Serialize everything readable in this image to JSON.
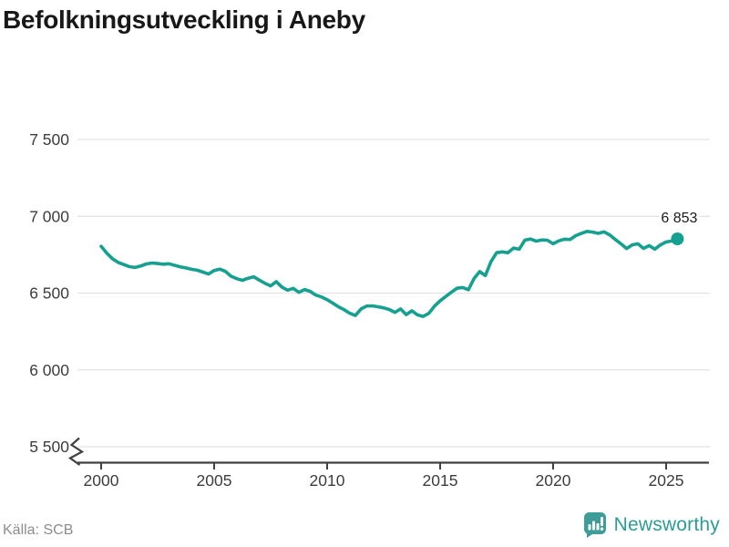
{
  "title": "Befolkningsutveckling i Aneby",
  "source": "Källa: SCB",
  "branding": {
    "wordmark": "Newsworthy",
    "logo_color": "#3f9d99",
    "wordmark_color": "#2b9c96"
  },
  "chart_data": {
    "type": "line",
    "title": "Befolkningsutveckling i Aneby",
    "xlabel": "",
    "ylabel": "",
    "grid": true,
    "y_axis_break": true,
    "line_color": "#16a08f",
    "grid_color": "#e3e3e3",
    "axis_color": "#404040",
    "tick_text_color": "#3d3d3d",
    "x_range": [
      2000,
      2025.5
    ],
    "y_range_shown": [
      5500,
      7500
    ],
    "x_ticks": [
      2000,
      2005,
      2010,
      2015,
      2020,
      2025
    ],
    "x_tick_labels": [
      "2000",
      "2005",
      "2010",
      "2015",
      "2020",
      "2025"
    ],
    "y_ticks": [
      5500,
      6000,
      6500,
      7000,
      7500
    ],
    "y_tick_labels": [
      "5 500",
      "6 000",
      "6 500",
      "7 000",
      "7 500"
    ],
    "endpoint_label": "6 853",
    "endpoint_value": 6853,
    "points": [
      [
        2000.0,
        6805
      ],
      [
        2000.25,
        6760
      ],
      [
        2000.5,
        6724
      ],
      [
        2000.75,
        6700
      ],
      [
        2001.0,
        6686
      ],
      [
        2001.25,
        6672
      ],
      [
        2001.5,
        6667
      ],
      [
        2001.75,
        6676
      ],
      [
        2002.0,
        6690
      ],
      [
        2002.25,
        6696
      ],
      [
        2002.5,
        6692
      ],
      [
        2002.75,
        6688
      ],
      [
        2003.0,
        6691
      ],
      [
        2003.25,
        6681
      ],
      [
        2003.5,
        6671
      ],
      [
        2003.75,
        6664
      ],
      [
        2004.0,
        6655
      ],
      [
        2004.25,
        6649
      ],
      [
        2004.5,
        6637
      ],
      [
        2004.75,
        6624
      ],
      [
        2005.0,
        6647
      ],
      [
        2005.25,
        6656
      ],
      [
        2005.5,
        6641
      ],
      [
        2005.75,
        6610
      ],
      [
        2006.0,
        6594
      ],
      [
        2006.25,
        6583
      ],
      [
        2006.5,
        6597
      ],
      [
        2006.75,
        6606
      ],
      [
        2007.0,
        6584
      ],
      [
        2007.25,
        6564
      ],
      [
        2007.5,
        6547
      ],
      [
        2007.75,
        6575
      ],
      [
        2008.0,
        6539
      ],
      [
        2008.25,
        6519
      ],
      [
        2008.5,
        6531
      ],
      [
        2008.75,
        6505
      ],
      [
        2009.0,
        6523
      ],
      [
        2009.25,
        6511
      ],
      [
        2009.5,
        6487
      ],
      [
        2009.75,
        6475
      ],
      [
        2010.0,
        6457
      ],
      [
        2010.25,
        6435
      ],
      [
        2010.5,
        6411
      ],
      [
        2010.75,
        6392
      ],
      [
        2011.0,
        6369
      ],
      [
        2011.25,
        6354
      ],
      [
        2011.5,
        6397
      ],
      [
        2011.75,
        6416
      ],
      [
        2012.0,
        6417
      ],
      [
        2012.25,
        6411
      ],
      [
        2012.5,
        6404
      ],
      [
        2012.75,
        6393
      ],
      [
        2013.0,
        6374
      ],
      [
        2013.25,
        6397
      ],
      [
        2013.5,
        6360
      ],
      [
        2013.75,
        6385
      ],
      [
        2014.0,
        6358
      ],
      [
        2014.25,
        6348
      ],
      [
        2014.5,
        6368
      ],
      [
        2014.75,
        6415
      ],
      [
        2015.0,
        6450
      ],
      [
        2015.25,
        6478
      ],
      [
        2015.5,
        6506
      ],
      [
        2015.75,
        6532
      ],
      [
        2016.0,
        6536
      ],
      [
        2016.25,
        6522
      ],
      [
        2016.5,
        6595
      ],
      [
        2016.75,
        6640
      ],
      [
        2017.0,
        6614
      ],
      [
        2017.25,
        6705
      ],
      [
        2017.5,
        6763
      ],
      [
        2017.75,
        6768
      ],
      [
        2018.0,
        6763
      ],
      [
        2018.25,
        6793
      ],
      [
        2018.5,
        6786
      ],
      [
        2018.75,
        6845
      ],
      [
        2019.0,
        6852
      ],
      [
        2019.25,
        6838
      ],
      [
        2019.5,
        6846
      ],
      [
        2019.75,
        6844
      ],
      [
        2020.0,
        6821
      ],
      [
        2020.25,
        6840
      ],
      [
        2020.5,
        6851
      ],
      [
        2020.75,
        6849
      ],
      [
        2021.0,
        6874
      ],
      [
        2021.25,
        6889
      ],
      [
        2021.5,
        6902
      ],
      [
        2021.75,
        6897
      ],
      [
        2022.0,
        6889
      ],
      [
        2022.25,
        6899
      ],
      [
        2022.5,
        6879
      ],
      [
        2022.75,
        6849
      ],
      [
        2023.0,
        6821
      ],
      [
        2023.25,
        6790
      ],
      [
        2023.5,
        6814
      ],
      [
        2023.75,
        6821
      ],
      [
        2024.0,
        6791
      ],
      [
        2024.25,
        6809
      ],
      [
        2024.5,
        6786
      ],
      [
        2024.75,
        6814
      ],
      [
        2025.0,
        6833
      ],
      [
        2025.25,
        6839
      ],
      [
        2025.5,
        6853
      ]
    ]
  }
}
